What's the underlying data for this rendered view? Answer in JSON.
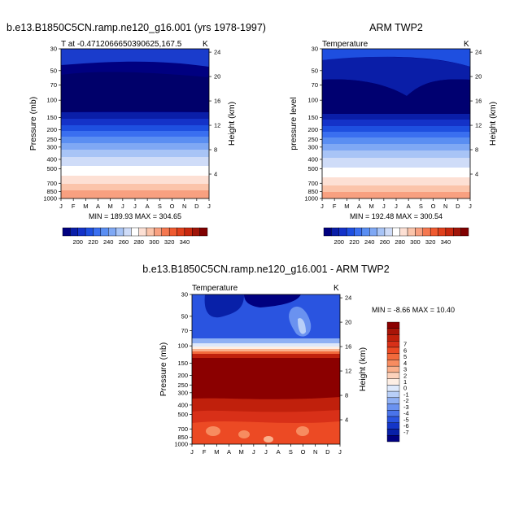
{
  "chart_data": [
    {
      "type": "heatmap",
      "title": "b.e13.B1850C5CN.ramp.ne120_g16.001 (yrs 1978-1997)",
      "subtitle_left": "T at -0.4712066650390625,167.5",
      "units": "K",
      "xlabel": "",
      "ylabel": "Pressure (mb)",
      "ylabel_right": "Height (km)",
      "x_ticks": [
        "J",
        "F",
        "M",
        "A",
        "M",
        "J",
        "J",
        "A",
        "S",
        "O",
        "N",
        "D",
        "J"
      ],
      "y_ticks": [
        "30",
        "50",
        "70",
        "100",
        "150",
        "200",
        "250",
        "300",
        "400",
        "500",
        "700",
        "850",
        "1000"
      ],
      "y_ticks_right": [
        "24",
        "20",
        "16",
        "12",
        "8",
        "4"
      ],
      "stats": "MIN = 189.93 MAX = 304.65",
      "colorbar_labels": [
        "200",
        "220",
        "240",
        "260",
        "280",
        "300",
        "320",
        "340"
      ],
      "colorbar_colors": [
        "#000080",
        "#0a1ea8",
        "#1432c8",
        "#1e4fe0",
        "#3a6ff0",
        "#5a8ef2",
        "#7fa8f4",
        "#a8c4f6",
        "#cfdcf8",
        "#ffffff",
        "#fde0d4",
        "#fbc4aa",
        "#f8a080",
        "#f57850",
        "#ef5a30",
        "#e0401c",
        "#c8280e",
        "#a01408",
        "#800000"
      ]
    },
    {
      "type": "heatmap",
      "title": "ARM TWP2",
      "subtitle_left": "Temperature",
      "units": "K",
      "xlabel": "",
      "ylabel": "pressure level",
      "ylabel_right": "Height (km)",
      "x_ticks": [
        "J",
        "F",
        "M",
        "A",
        "M",
        "J",
        "J",
        "A",
        "S",
        "O",
        "N",
        "D",
        "J"
      ],
      "y_ticks": [
        "30",
        "50",
        "70",
        "100",
        "150",
        "200",
        "250",
        "300",
        "400",
        "500",
        "700",
        "850",
        "1000"
      ],
      "y_ticks_right": [
        "24",
        "20",
        "16",
        "12",
        "8",
        "4"
      ],
      "stats": "MIN = 192.48 MAX = 300.54",
      "colorbar_labels": [
        "200",
        "220",
        "240",
        "260",
        "280",
        "300",
        "320",
        "340"
      ],
      "colorbar_colors": [
        "#000080",
        "#0a1ea8",
        "#1432c8",
        "#1e4fe0",
        "#3a6ff0",
        "#5a8ef2",
        "#7fa8f4",
        "#a8c4f6",
        "#cfdcf8",
        "#ffffff",
        "#fde0d4",
        "#fbc4aa",
        "#f8a080",
        "#f57850",
        "#ef5a30",
        "#e0401c",
        "#c8280e",
        "#a01408",
        "#800000"
      ]
    },
    {
      "type": "heatmap",
      "title": "b.e13.B1850C5CN.ramp.ne120_g16.001 - ARM TWP2",
      "subtitle_left": "Temperature",
      "units": "K",
      "xlabel": "",
      "ylabel": "Pressure (mb)",
      "ylabel_right": "Height (km)",
      "x_ticks": [
        "J",
        "F",
        "M",
        "A",
        "M",
        "J",
        "J",
        "A",
        "S",
        "O",
        "N",
        "D",
        "J"
      ],
      "y_ticks": [
        "30",
        "50",
        "70",
        "100",
        "150",
        "200",
        "250",
        "300",
        "400",
        "500",
        "700",
        "850",
        "1000"
      ],
      "y_ticks_right": [
        "24",
        "20",
        "16",
        "12",
        "8",
        "4"
      ],
      "stats": "MIN = -8.66 MAX =  10.40",
      "colorbar_labels": [
        "7",
        "6",
        "5",
        "4",
        "3",
        "2",
        "1",
        "0",
        "-1",
        "-2",
        "-3",
        "-4",
        "-5",
        "-6",
        "-7"
      ],
      "colorbar_colors": [
        "#8b0000",
        "#a81408",
        "#c0200c",
        "#d83018",
        "#ec4a24",
        "#f26a3c",
        "#f78c60",
        "#fab08c",
        "#fcd2bc",
        "#fdeee4",
        "#dde8fb",
        "#b8cff8",
        "#8fb0f4",
        "#6a92f0",
        "#4a74ea",
        "#2a54e0",
        "#1436c8",
        "#0820a8",
        "#000080"
      ]
    }
  ]
}
